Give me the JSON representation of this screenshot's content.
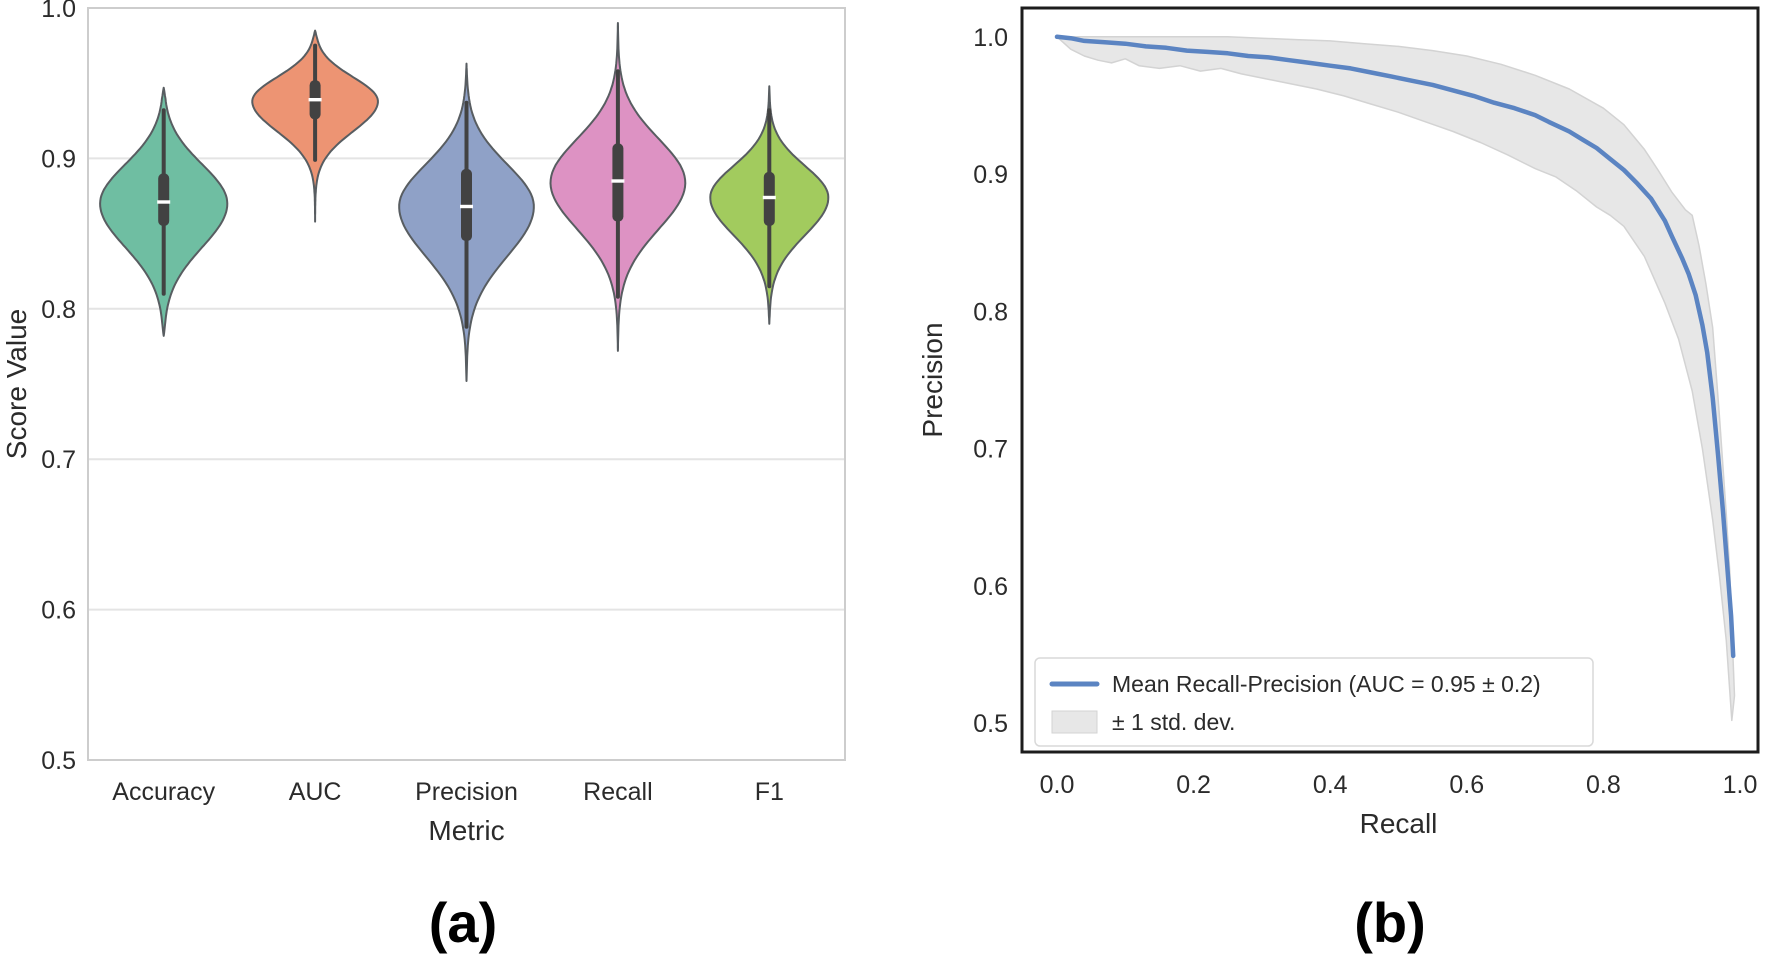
{
  "captions": {
    "a": "(a)",
    "b": "(b)"
  },
  "colors": {
    "mean_line": "#5b84c2",
    "band_fill": "#e7e7e7",
    "band_edge": "#d3d3d3",
    "grid": "#e4e4e4",
    "spine_light": "#cdcdcd",
    "spine_dark": "#1c1c1c",
    "text": "#2b2b2b",
    "box": "#424242",
    "median": "#ffffff",
    "violin_edge": "#585d61",
    "legend_border": "#d9d9d9",
    "legend_bg": "#ffffff"
  },
  "chart_data": [
    {
      "id": "violin-metrics",
      "type": "violin",
      "title": "",
      "xlabel": "Metric",
      "ylabel": "Score Value",
      "ylim": [
        0.5,
        1.0
      ],
      "yticks": [
        "1.0",
        "0.9",
        "0.8",
        "0.7",
        "0.6",
        "0.5"
      ],
      "gridlines": [
        0.9,
        0.8,
        0.7,
        0.6
      ],
      "categories": [
        "Accuracy",
        "AUC",
        "Precision",
        "Recall",
        "F1"
      ],
      "violins": [
        {
          "label": "Accuracy",
          "color": "#6fbea2",
          "median": 0.871,
          "q1": 0.855,
          "q3": 0.89,
          "whisker_low": 0.81,
          "whisker_high": 0.932,
          "min": 0.782,
          "max": 0.947,
          "mode": 0.87,
          "sigma_low": 0.029,
          "sigma_up": 0.026,
          "rel_width": 0.84
        },
        {
          "label": "AUC",
          "color": "#ed9473",
          "median": 0.939,
          "q1": 0.926,
          "q3": 0.952,
          "whisker_low": 0.899,
          "whisker_high": 0.975,
          "min": 0.858,
          "max": 0.985,
          "mode": 0.938,
          "sigma_low": 0.02,
          "sigma_up": 0.016,
          "rel_width": 0.83
        },
        {
          "label": "Precision",
          "color": "#8fa1c7",
          "median": 0.868,
          "q1": 0.845,
          "q3": 0.893,
          "whisker_low": 0.788,
          "whisker_high": 0.937,
          "min": 0.752,
          "max": 0.963,
          "mode": 0.868,
          "sigma_low": 0.033,
          "sigma_up": 0.028,
          "rel_width": 0.89
        },
        {
          "label": "Recall",
          "color": "#dd92c3",
          "median": 0.885,
          "q1": 0.858,
          "q3": 0.91,
          "whisker_low": 0.808,
          "whisker_high": 0.958,
          "min": 0.772,
          "max": 0.99,
          "mode": 0.884,
          "sigma_low": 0.031,
          "sigma_up": 0.029,
          "rel_width": 0.89
        },
        {
          "label": "F1",
          "color": "#a2cb5e",
          "median": 0.874,
          "q1": 0.855,
          "q3": 0.891,
          "whisker_low": 0.815,
          "whisker_high": 0.932,
          "min": 0.79,
          "max": 0.948,
          "mode": 0.874,
          "sigma_low": 0.025,
          "sigma_up": 0.021,
          "rel_width": 0.78
        }
      ]
    },
    {
      "id": "pr-curve",
      "type": "line",
      "title": "",
      "xlabel": "Recall",
      "ylabel": "Precision",
      "xticks": [
        "0.0",
        "0.2",
        "0.4",
        "0.6",
        "0.8",
        "1.0"
      ],
      "yticks": [
        "1.0",
        "0.9",
        "0.8",
        "0.7",
        "0.6",
        "0.5"
      ],
      "xlim": [
        -0.06,
        1.03
      ],
      "ylim": [
        0.479,
        1.021
      ],
      "legend": [
        {
          "type": "line",
          "label": "Mean Recall-Precision (AUC = 0.95 ± 0.2)"
        },
        {
          "type": "band",
          "label": "± 1 std. dev."
        }
      ],
      "mean_curve": {
        "recall": [
          0.0,
          0.02,
          0.04,
          0.07,
          0.1,
          0.13,
          0.16,
          0.19,
          0.22,
          0.25,
          0.28,
          0.31,
          0.34,
          0.37,
          0.4,
          0.43,
          0.46,
          0.49,
          0.52,
          0.55,
          0.58,
          0.61,
          0.64,
          0.67,
          0.7,
          0.72,
          0.75,
          0.77,
          0.79,
          0.81,
          0.83,
          0.85,
          0.87,
          0.89,
          0.9,
          0.915,
          0.925,
          0.935,
          0.945,
          0.952,
          0.96,
          0.968,
          0.975,
          0.982,
          0.987,
          0.99
        ],
        "precision": [
          1.0,
          0.999,
          0.997,
          0.996,
          0.995,
          0.993,
          0.992,
          0.99,
          0.989,
          0.988,
          0.986,
          0.985,
          0.983,
          0.981,
          0.979,
          0.977,
          0.974,
          0.971,
          0.968,
          0.965,
          0.961,
          0.957,
          0.952,
          0.948,
          0.943,
          0.938,
          0.931,
          0.925,
          0.919,
          0.911,
          0.903,
          0.893,
          0.882,
          0.866,
          0.855,
          0.839,
          0.827,
          0.812,
          0.79,
          0.77,
          0.737,
          0.695,
          0.655,
          0.61,
          0.578,
          0.549
        ]
      },
      "band_upper": {
        "recall": [
          0.0,
          0.05,
          0.1,
          0.15,
          0.2,
          0.25,
          0.3,
          0.35,
          0.4,
          0.45,
          0.5,
          0.55,
          0.6,
          0.65,
          0.7,
          0.75,
          0.8,
          0.83,
          0.86,
          0.88,
          0.9,
          0.92,
          0.93,
          0.94,
          0.95,
          0.96,
          0.97,
          0.98,
          0.985,
          0.988,
          0.992
        ],
        "precision": [
          1.0,
          1.0,
          1.0,
          1.0,
          1.0,
          1.0,
          0.999,
          0.998,
          0.997,
          0.995,
          0.993,
          0.99,
          0.986,
          0.98,
          0.972,
          0.962,
          0.948,
          0.936,
          0.918,
          0.903,
          0.887,
          0.874,
          0.87,
          0.848,
          0.82,
          0.788,
          0.723,
          0.652,
          0.61,
          0.57,
          0.52
        ]
      },
      "band_lower": {
        "recall": [
          0.0,
          0.02,
          0.04,
          0.06,
          0.08,
          0.1,
          0.12,
          0.15,
          0.18,
          0.21,
          0.24,
          0.27,
          0.3,
          0.34,
          0.38,
          0.42,
          0.46,
          0.5,
          0.54,
          0.58,
          0.62,
          0.66,
          0.7,
          0.73,
          0.76,
          0.79,
          0.81,
          0.83,
          0.86,
          0.89,
          0.91,
          0.93,
          0.945,
          0.96,
          0.97,
          0.98,
          0.988
        ],
        "precision": [
          1.0,
          0.991,
          0.986,
          0.983,
          0.981,
          0.984,
          0.979,
          0.977,
          0.979,
          0.975,
          0.977,
          0.973,
          0.97,
          0.966,
          0.962,
          0.957,
          0.951,
          0.945,
          0.938,
          0.931,
          0.923,
          0.914,
          0.904,
          0.898,
          0.888,
          0.876,
          0.87,
          0.862,
          0.84,
          0.806,
          0.78,
          0.742,
          0.7,
          0.648,
          0.607,
          0.56,
          0.502
        ]
      }
    }
  ]
}
